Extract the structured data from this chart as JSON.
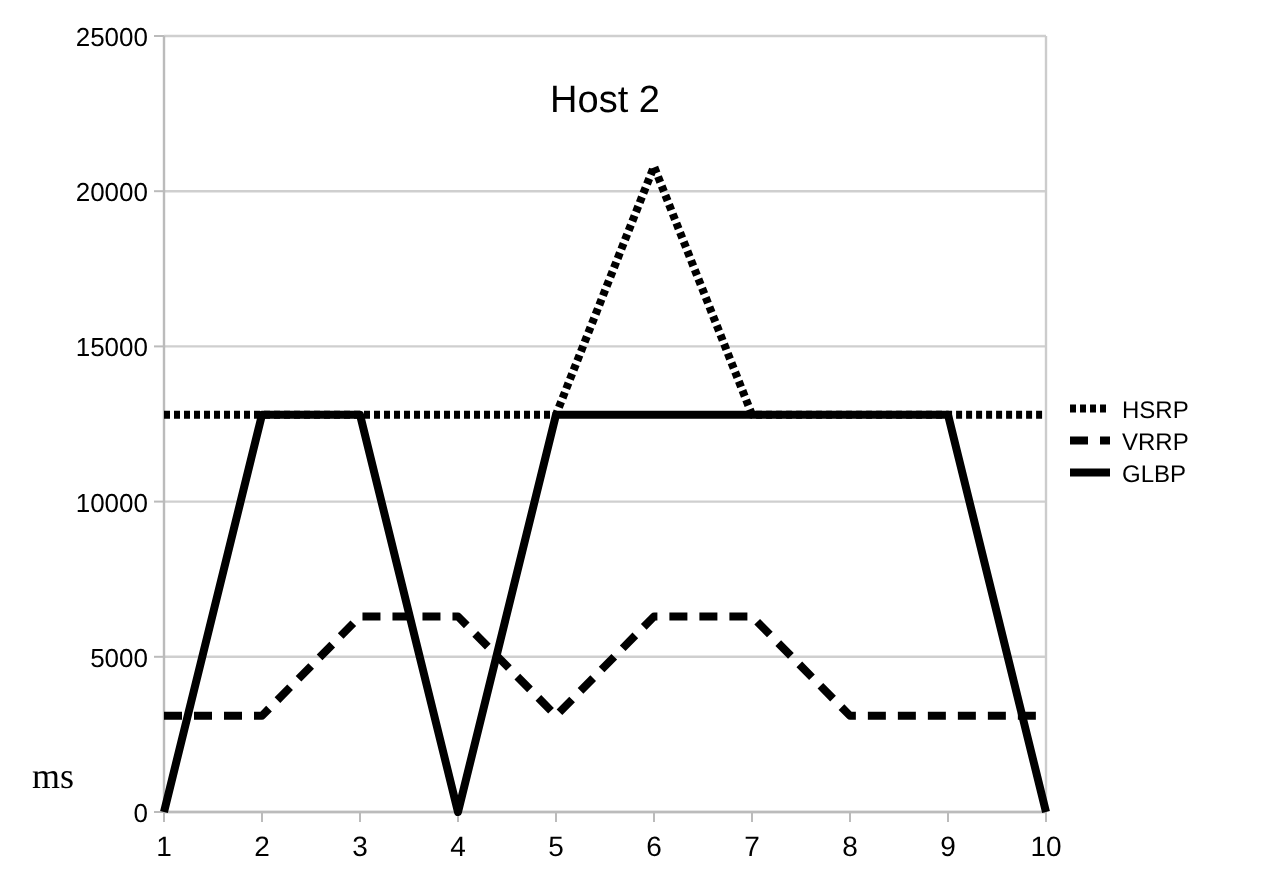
{
  "chart_data": {
    "type": "line",
    "title": "Host 2",
    "ylabel": "ms",
    "x": [
      1,
      2,
      3,
      4,
      5,
      6,
      7,
      8,
      9,
      10
    ],
    "xlim": [
      1,
      10
    ],
    "xticks": [
      1,
      2,
      3,
      4,
      5,
      6,
      7,
      8,
      9,
      10
    ],
    "ylim": [
      0,
      25000
    ],
    "yticks": [
      0,
      5000,
      10000,
      15000,
      20000,
      25000
    ],
    "grid": "y",
    "legend": "right",
    "marker": "none",
    "series": [
      {
        "name": "HSRP",
        "color": "#000000",
        "line_style": "dotted",
        "values": [
          12800,
          12800,
          12800,
          12800,
          12800,
          20800,
          12800,
          12800,
          12800,
          12800
        ]
      },
      {
        "name": "VRRP",
        "color": "#000000",
        "line_style": "dashed",
        "values": [
          3100,
          3100,
          6300,
          6300,
          3100,
          6300,
          6300,
          3100,
          3100,
          3100
        ]
      },
      {
        "name": "GLBP",
        "color": "#000000",
        "line_style": "solid",
        "values": [
          0,
          12800,
          12800,
          0,
          12800,
          12800,
          12800,
          12800,
          12800,
          0
        ]
      }
    ]
  }
}
